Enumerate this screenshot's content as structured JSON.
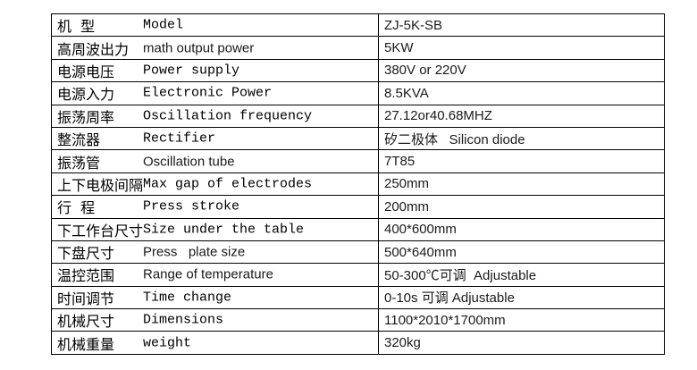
{
  "table": {
    "rows": [
      {
        "zh": "机  型",
        "en": "Model",
        "en_font": "mono",
        "value": "ZJ-5K-SB"
      },
      {
        "zh": "高周波出力",
        "en": "math output power",
        "en_font": "sans",
        "value": "5KW"
      },
      {
        "zh": "电源电压",
        "en": "Power supply",
        "en_font": "mono",
        "value": "380V or 220V"
      },
      {
        "zh": "电源入力",
        "en": "Electronic Power",
        "en_font": "mono",
        "value": "8.5KVA"
      },
      {
        "zh": "振荡周率",
        "en": "Oscillation frequency",
        "en_font": "mono",
        "value": "27.12or40.68MHZ"
      },
      {
        "zh": "整流器",
        "en": "Rectifier",
        "en_font": "mono",
        "value": "矽二极体   Silicon diode"
      },
      {
        "zh": "振荡管",
        "en": "Oscillation tube",
        "en_font": "sans",
        "value": "7T85"
      },
      {
        "zh": "上下电极间隔",
        "en": "Max gap of electrodes",
        "en_font": "mono",
        "value": "250mm"
      },
      {
        "zh": "行  程",
        "en": "Press stroke",
        "en_font": "mono",
        "value": "200mm"
      },
      {
        "zh": "下工作台尺寸",
        "en": "Size under the table",
        "en_font": "mono",
        "value": "400*600mm"
      },
      {
        "zh": "下盘尺寸",
        "en": "Press   plate size",
        "en_font": "sans",
        "value": "500*640mm"
      },
      {
        "zh": "温控范围",
        "en": "Range of temperature",
        "en_font": "sans",
        "value": "50-300℃可调  Adjustable"
      },
      {
        "zh": "时间调节",
        "en": "Time change",
        "en_font": "mono",
        "value": "0-10s 可调 Adjustable"
      },
      {
        "zh": "机械尺寸",
        "en": "Dimensions",
        "en_font": "mono",
        "value": "1100*2010*1700mm"
      },
      {
        "zh": "机械重量",
        "en": "weight",
        "en_font": "mono",
        "value": "320kg"
      }
    ]
  }
}
